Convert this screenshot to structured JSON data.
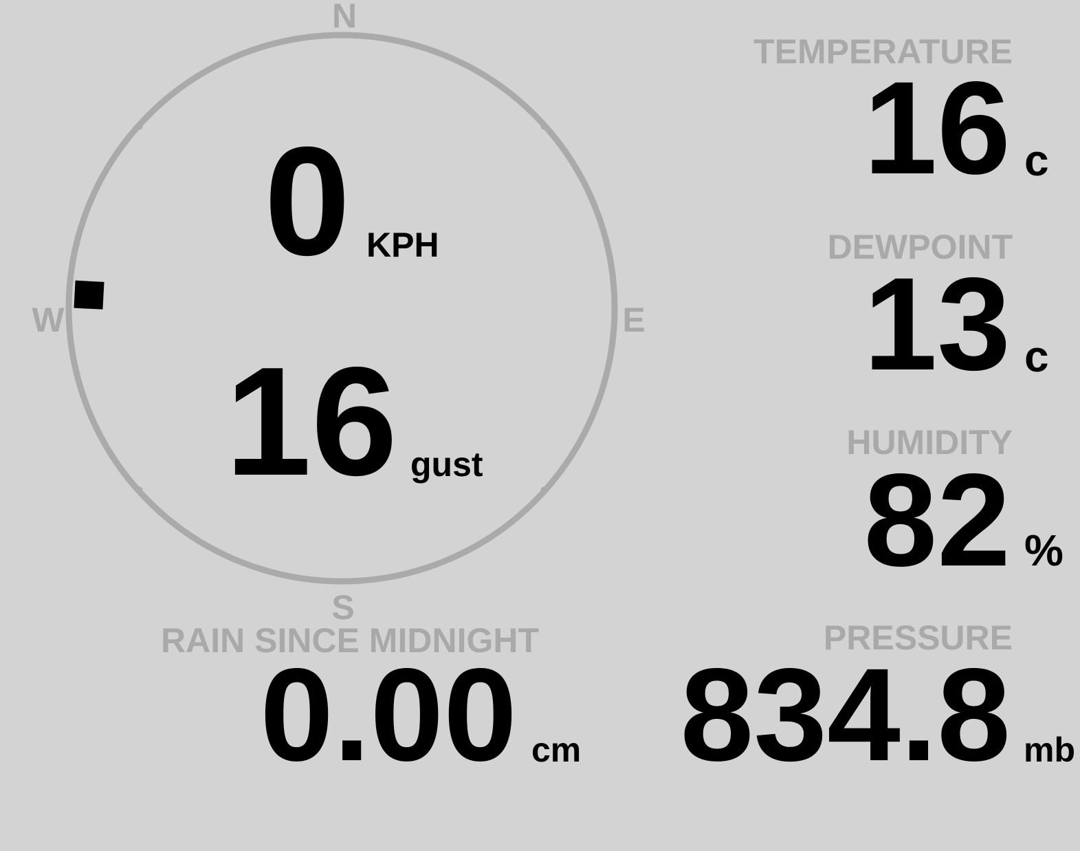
{
  "compass": {
    "north": "N",
    "east": "E",
    "south": "S",
    "west": "W",
    "wind_direction": 273
  },
  "wind": {
    "speed": "0",
    "speed_unit": "KPH",
    "gust": "16",
    "gust_unit": "gust"
  },
  "temperature": {
    "label": "TEMPERATURE",
    "value": "16",
    "unit": "c"
  },
  "dewpoint": {
    "label": "DEWPOINT",
    "value": "13",
    "unit": "c"
  },
  "humidity": {
    "label": "HUMIDITY",
    "value": "82",
    "unit": "%"
  },
  "rain": {
    "label": "RAIN SINCE MIDNIGHT",
    "value": "0.00",
    "unit": "cm"
  },
  "pressure": {
    "label": "PRESSURE",
    "value": "834.8",
    "unit": "mb"
  }
}
